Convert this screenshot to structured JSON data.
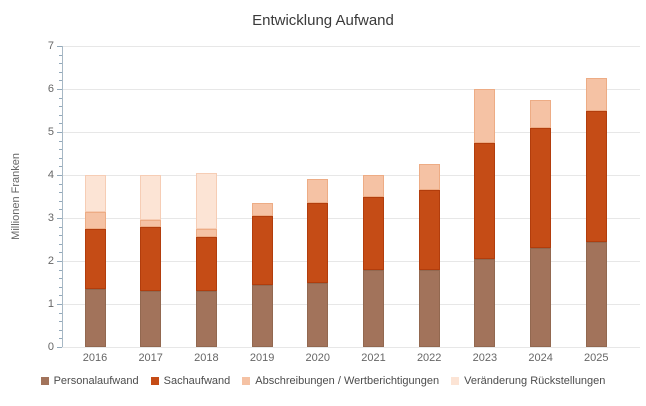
{
  "title": "Entwicklung Aufwand",
  "chart_data": {
    "type": "bar",
    "stacked": true,
    "title": "Entwicklung Aufwand",
    "ylabel": "Millionen Franken",
    "xlabel": "",
    "ylim": [
      0,
      7
    ],
    "y_ticks": [
      0,
      1,
      2,
      3,
      4,
      5,
      6,
      7
    ],
    "minor_tick_step": 0.2,
    "grid": true,
    "legend_position": "bottom",
    "categories": [
      "2016",
      "2017",
      "2018",
      "2019",
      "2020",
      "2021",
      "2022",
      "2023",
      "2024",
      "2025"
    ],
    "series": [
      {
        "name": "Personalaufwand",
        "color": "#a2735b",
        "border_color": "#926850",
        "values": [
          1.35,
          1.3,
          1.3,
          1.45,
          1.5,
          1.8,
          1.8,
          2.05,
          2.3,
          2.45
        ]
      },
      {
        "name": "Sachaufwand",
        "color": "#c54c16",
        "border_color": "#b23d0c",
        "values": [
          1.4,
          1.5,
          1.25,
          1.6,
          1.85,
          1.7,
          1.85,
          2.7,
          2.8,
          3.05
        ]
      },
      {
        "name": "Abschreibungen / Wertberichtigungen",
        "color": "#f5c2a4",
        "border_color": "#edac85",
        "values": [
          0.4,
          0.15,
          0.2,
          0.3,
          0.55,
          0.5,
          0.6,
          1.25,
          0.65,
          0.75
        ]
      },
      {
        "name": "Veränderung Rückstellungen",
        "color": "#fce4d5",
        "border_color": "#f6cdb5",
        "values": [
          0.85,
          1.05,
          1.3,
          0.0,
          0.0,
          0.0,
          0.0,
          0.0,
          0.0,
          0.0
        ]
      }
    ],
    "totals": [
      4.0,
      4.0,
      4.05,
      3.35,
      3.9,
      4.0,
      4.25,
      6.0,
      5.75,
      6.25
    ]
  },
  "axis_colors": {
    "y_axis_line": "#a7b8c5",
    "tick": "#93a9ba",
    "gridline": "#e7e7e7",
    "label_text": "#666666",
    "title_text": "#3a3a3a"
  }
}
